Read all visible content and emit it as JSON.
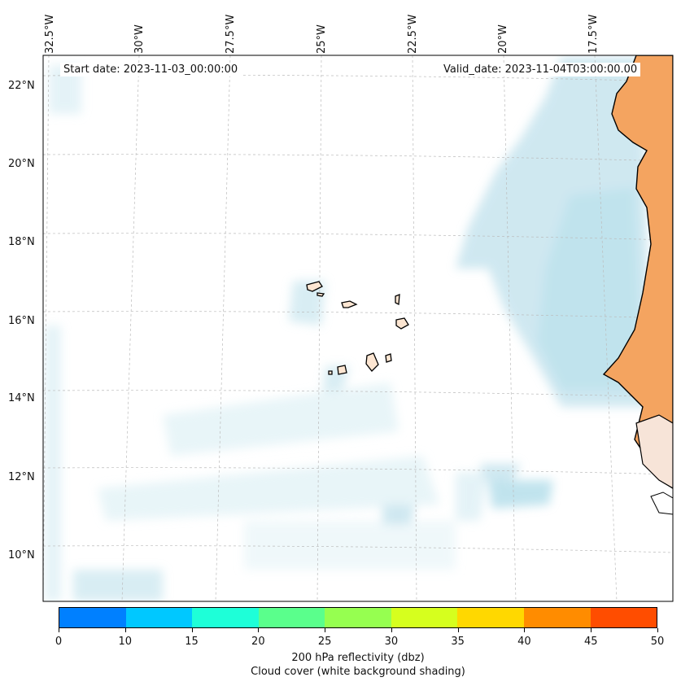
{
  "header": {
    "start_date": "Start date: 2023-11-03_00:00:00",
    "valid_date": "Valid_date: 2023-11-04T03:00:00.00"
  },
  "axes": {
    "latitude_labels": [
      "22°N",
      "20°N",
      "18°N",
      "16°N",
      "14°N",
      "12°N",
      "10°N"
    ],
    "longitude_labels": [
      "32.5°W",
      "30°W",
      "27.5°W",
      "25°W",
      "22.5°W",
      "20°W",
      "17.5°W"
    ]
  },
  "map": {
    "region": "Eastern North Atlantic off West Africa",
    "features": [
      "cape-verde-islands",
      "west-african-coastline"
    ],
    "land_color": "#f4a460",
    "cloud_color": "#a9d6e5"
  },
  "colorbar": {
    "ticks": [
      "0",
      "10",
      "15",
      "20",
      "25",
      "30",
      "35",
      "40",
      "45",
      "50"
    ],
    "colors": [
      "#0080ff",
      "#00c8ff",
      "#1effd8",
      "#5aff8c",
      "#96ff50",
      "#d6ff1e",
      "#ffd800",
      "#ff8c00",
      "#ff4d00"
    ],
    "label": "200 hPa reflectivity (dbz)",
    "sublabel": "Cloud cover (white background shading)"
  }
}
